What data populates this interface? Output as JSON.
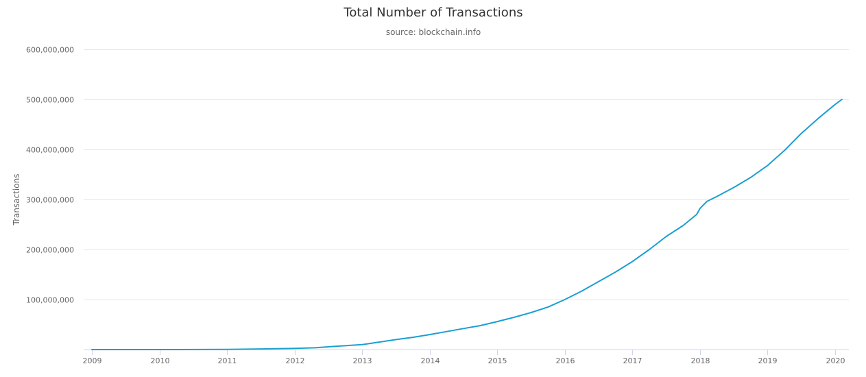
{
  "chart_data": {
    "type": "line",
    "title": "Total Number of Transactions",
    "subtitle": "source: blockchain.info",
    "xlabel": "",
    "ylabel": "Transactions",
    "x_ticks": [
      "2009",
      "2010",
      "2011",
      "2012",
      "2013",
      "2014",
      "2015",
      "2016",
      "2017",
      "2018",
      "2019",
      "2020"
    ],
    "y_ticks": [
      100000000,
      200000000,
      300000000,
      400000000,
      500000000,
      600000000
    ],
    "y_tick_labels": [
      "100,000,000",
      "200,000,000",
      "300,000,000",
      "400,000,000",
      "500,000,000",
      "600,000,000"
    ],
    "xlim": [
      2009.0,
      2020.25
    ],
    "ylim": [
      0,
      600000000
    ],
    "grid": true,
    "legend": "none",
    "line_color": "#1a9fd1",
    "series": [
      {
        "x": [
          2009.0,
          2010.0,
          2011.0,
          2011.5,
          2012.0,
          2012.3,
          2012.6,
          2013.0,
          2013.25,
          2013.5,
          2013.75,
          2014.0,
          2014.25,
          2014.5,
          2014.75,
          2015.0,
          2015.25,
          2015.5,
          2015.75,
          2016.0,
          2016.25,
          2016.5,
          2016.75,
          2017.0,
          2017.25,
          2017.5,
          2017.75,
          2017.95,
          2018.0,
          2018.1,
          2018.25,
          2018.5,
          2018.75,
          2019.0,
          2019.25,
          2019.5,
          2019.75,
          2020.0,
          2020.1
        ],
        "y": [
          0,
          0,
          300000,
          1200000,
          2500000,
          3500000,
          6500000,
          10000000,
          15000000,
          20000000,
          24500000,
          30000000,
          36000000,
          42000000,
          48000000,
          56000000,
          64500000,
          74000000,
          85000000,
          100000000,
          117000000,
          136000000,
          155000000,
          176000000,
          200000000,
          226000000,
          248000000,
          270000000,
          282000000,
          296000000,
          306000000,
          324000000,
          344000000,
          368000000,
          398000000,
          432000000,
          462000000,
          490000000,
          500000000
        ]
      }
    ]
  }
}
